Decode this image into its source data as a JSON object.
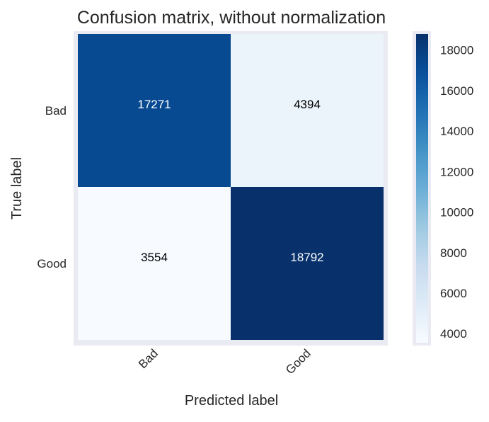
{
  "chart_data": {
    "type": "heatmap",
    "title": "Confusion matrix, without normalization",
    "xlabel": "Predicted label",
    "ylabel": "True label",
    "x_categories": [
      "Bad",
      "Good"
    ],
    "y_categories": [
      "Bad",
      "Good"
    ],
    "values": [
      [
        17271,
        4394
      ],
      [
        3554,
        18792
      ]
    ],
    "colormap": "Blues",
    "color_range": [
      3554,
      18792
    ],
    "colorbar_ticks": [
      4000,
      6000,
      8000,
      10000,
      12000,
      14000,
      16000,
      18000
    ],
    "grid": false,
    "x_tick_rotation": 45
  }
}
